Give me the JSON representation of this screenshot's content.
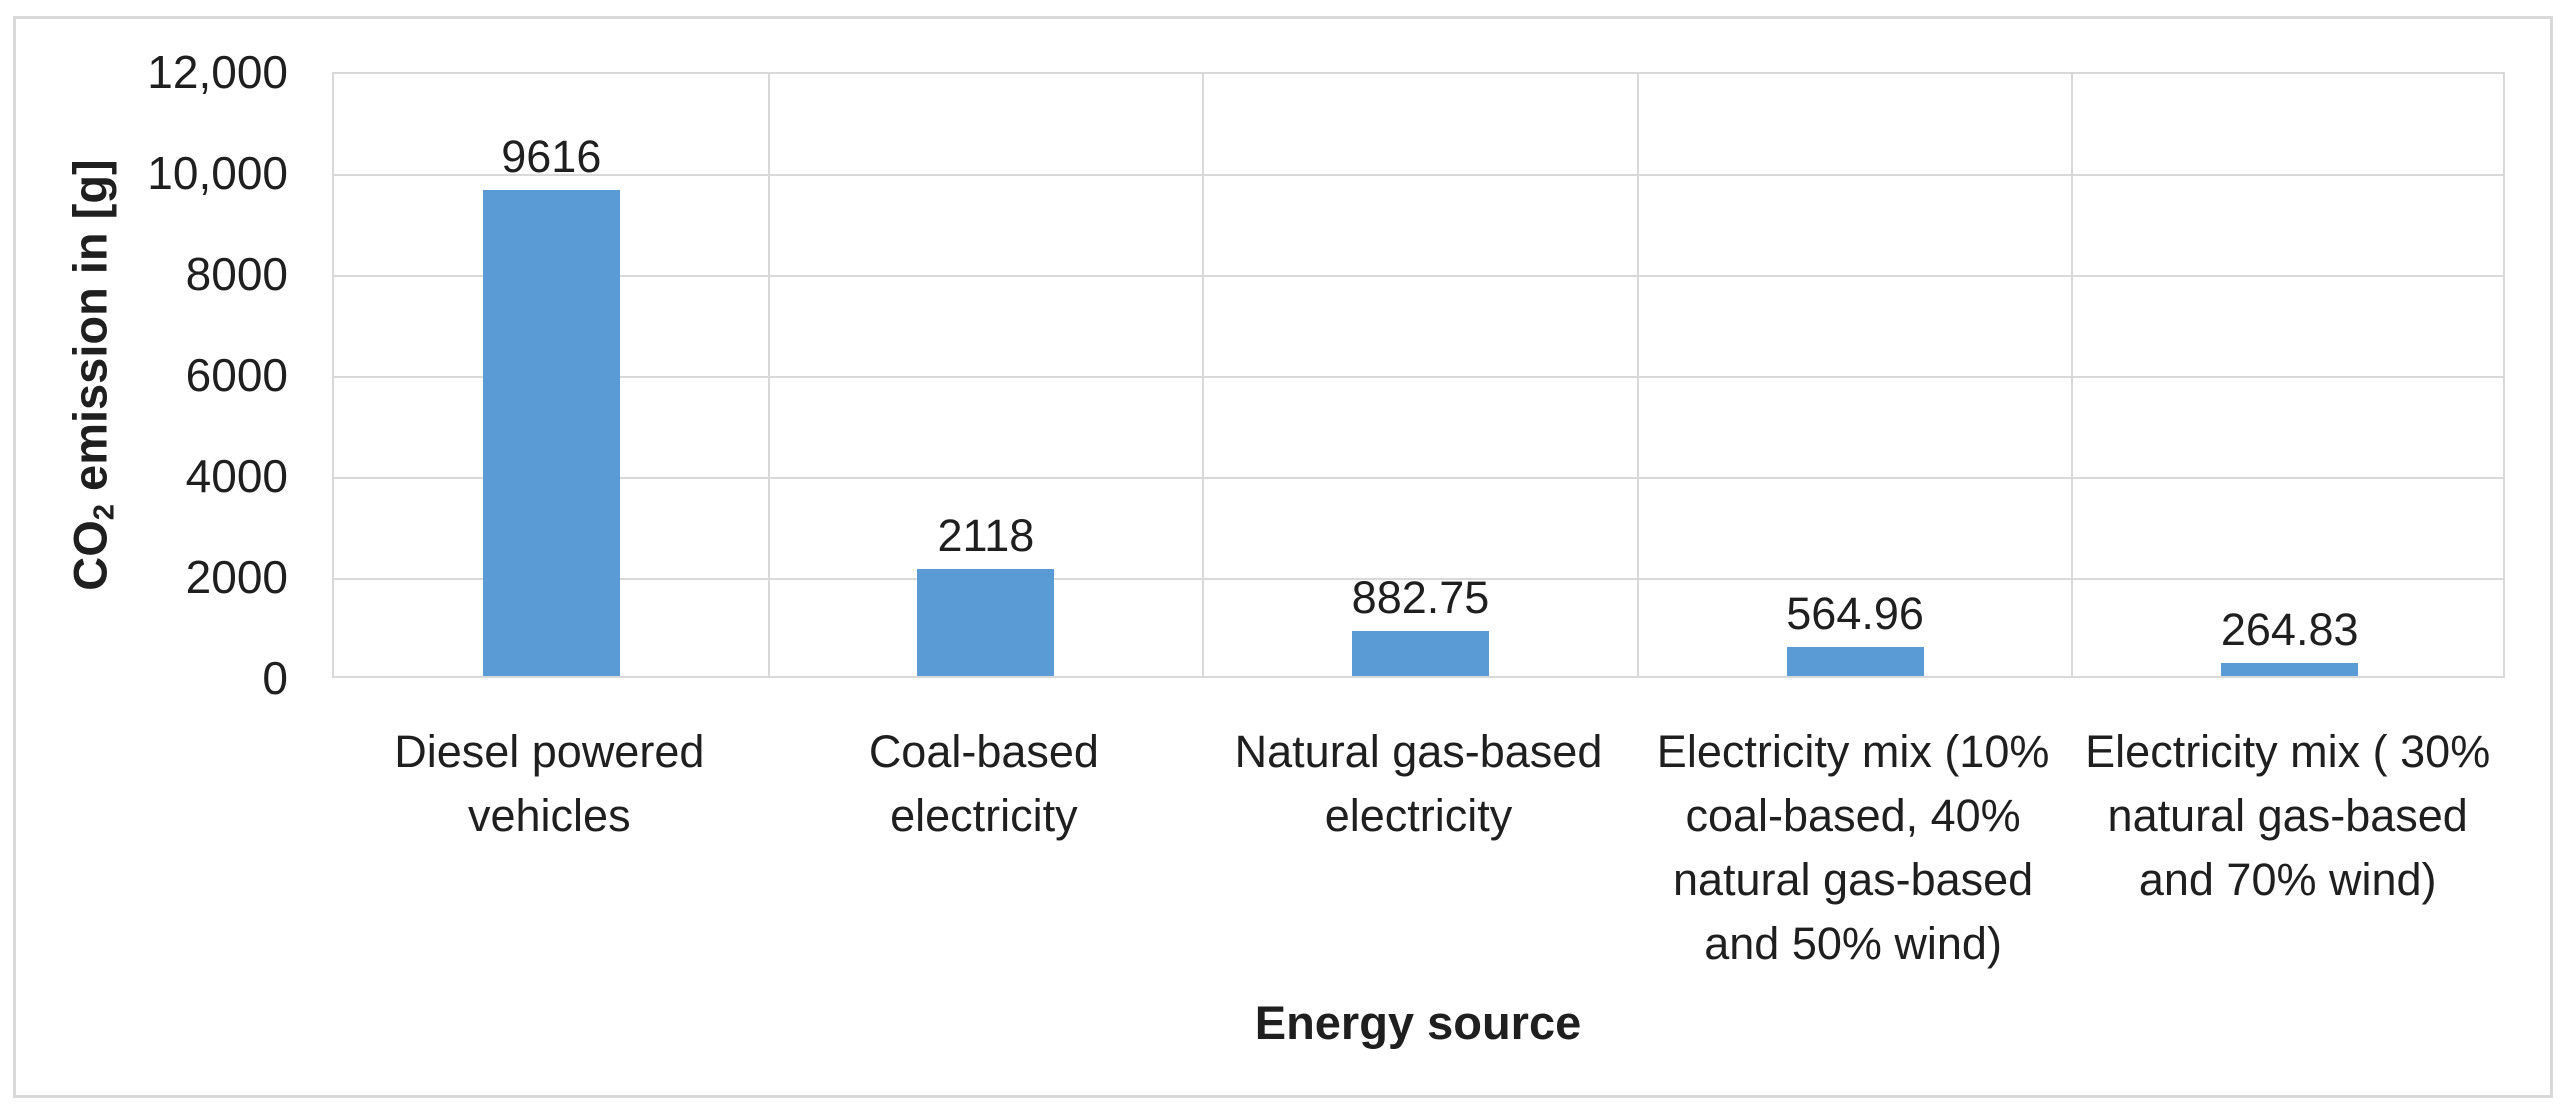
{
  "chart_data": {
    "type": "bar",
    "title": "",
    "xlabel": "Energy source",
    "ylabel": "CO2 emission in [g]",
    "ylabel_parts": {
      "prefix": "CO",
      "subscript": "2",
      "suffix": " emission in [g]"
    },
    "categories": [
      "Diesel powered vehicles",
      "Coal-based electricity",
      "Natural gas-based electricity",
      "Electricity mix (10% coal-based, 40% natural gas-based and 50% wind)",
      "Electricity mix ( 30% natural gas-based and 70% wind)"
    ],
    "categories_wrapped": [
      [
        "Diesel powered",
        "vehicles"
      ],
      [
        "Coal-based",
        "electricity"
      ],
      [
        "Natural gas-based",
        "electricity"
      ],
      [
        "Electricity mix (10%",
        "coal-based, 40%",
        "natural gas-based",
        "and 50% wind)"
      ],
      [
        "Electricity mix ( 30%",
        "natural gas-based",
        "and 70% wind)"
      ]
    ],
    "values": [
      9616,
      2118,
      882.75,
      564.96,
      264.83
    ],
    "data_labels": [
      "9616",
      "2118",
      "882.75",
      "564.96",
      "264.83"
    ],
    "ylim": [
      0,
      12000
    ],
    "ytick_interval": 2000,
    "ytick_labels": [
      "0",
      "2000",
      "4000",
      "6000",
      "8000",
      "10,000",
      "12,000"
    ],
    "grid": {
      "horizontal": true,
      "vertical": true
    },
    "legend": "none",
    "colors": {
      "bar": "#5b9bd5",
      "gridline": "#d9d9d9",
      "frame_border": "#d9d9d9",
      "text": "#1f1f1f"
    }
  }
}
